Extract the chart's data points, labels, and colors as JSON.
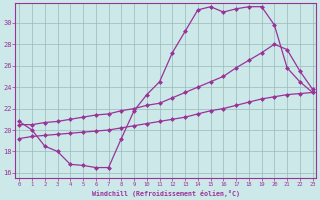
{
  "background_color": "#cce8e8",
  "grid_color": "#99bbbb",
  "line_color": "#993399",
  "xlim_min": -0.3,
  "xlim_max": 23.3,
  "ylim_min": 15.5,
  "ylim_max": 31.8,
  "xticks": [
    0,
    1,
    2,
    3,
    4,
    5,
    6,
    7,
    8,
    9,
    10,
    11,
    12,
    13,
    14,
    15,
    16,
    17,
    18,
    19,
    20,
    21,
    22,
    23
  ],
  "yticks": [
    16,
    18,
    20,
    22,
    24,
    26,
    28,
    30
  ],
  "xlabel": "Windchill (Refroidissement éolien,°C)",
  "curve1_x": [
    0,
    1,
    2,
    3,
    4,
    5,
    6,
    7,
    8,
    9,
    10,
    11,
    12,
    13,
    14,
    15,
    16,
    17,
    18,
    19,
    20,
    21,
    22,
    23
  ],
  "curve1_y": [
    20.8,
    20.0,
    18.5,
    18.0,
    16.8,
    16.7,
    16.5,
    16.5,
    19.2,
    21.8,
    23.3,
    24.5,
    27.2,
    29.2,
    31.2,
    31.5,
    31.0,
    31.3,
    31.5,
    31.5,
    29.8,
    25.8,
    24.5,
    23.5
  ],
  "curve2_x": [
    0,
    1,
    2,
    3,
    4,
    5,
    6,
    7,
    8,
    9,
    10,
    11,
    12,
    13,
    14,
    15,
    16,
    17,
    18,
    19,
    20,
    21,
    22,
    23
  ],
  "curve2_y": [
    20.5,
    20.5,
    20.7,
    20.8,
    21.0,
    21.2,
    21.4,
    21.5,
    21.8,
    22.0,
    22.3,
    22.5,
    23.0,
    23.5,
    24.0,
    24.5,
    25.0,
    25.8,
    26.5,
    27.2,
    28.0,
    27.5,
    25.5,
    23.8
  ],
  "curve3_x": [
    0,
    1,
    2,
    3,
    4,
    5,
    6,
    7,
    8,
    9,
    10,
    11,
    12,
    13,
    14,
    15,
    16,
    17,
    18,
    19,
    20,
    21,
    22,
    23
  ],
  "curve3_y": [
    19.2,
    19.4,
    19.5,
    19.6,
    19.7,
    19.8,
    19.9,
    20.0,
    20.2,
    20.4,
    20.6,
    20.8,
    21.0,
    21.2,
    21.5,
    21.8,
    22.0,
    22.3,
    22.6,
    22.9,
    23.1,
    23.3,
    23.4,
    23.5
  ]
}
